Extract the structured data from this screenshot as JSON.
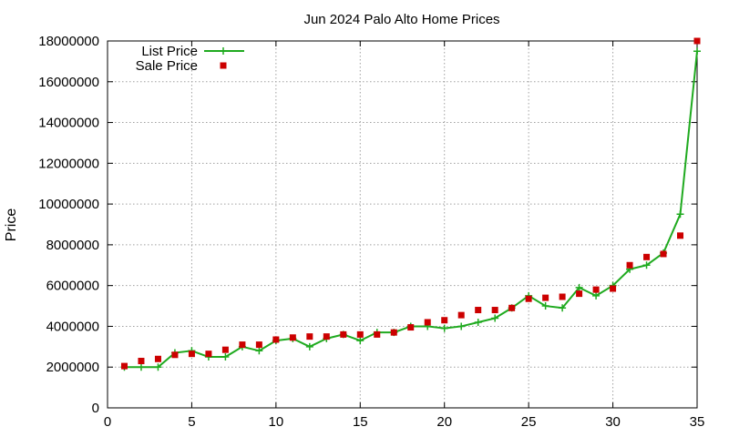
{
  "chart_data": {
    "type": "line",
    "title": "Jun 2024 Palo Alto Home Prices",
    "xlabel": "",
    "ylabel": "Price",
    "xlim": [
      0,
      35
    ],
    "ylim": [
      0,
      18000000
    ],
    "x_ticks": [
      0,
      5,
      10,
      15,
      20,
      25,
      30,
      35
    ],
    "y_ticks": [
      0,
      2000000,
      4000000,
      6000000,
      8000000,
      10000000,
      12000000,
      14000000,
      16000000,
      18000000
    ],
    "grid": true,
    "legend_position": "top-left",
    "x": [
      1,
      2,
      3,
      4,
      5,
      6,
      7,
      8,
      9,
      10,
      11,
      12,
      13,
      14,
      15,
      16,
      17,
      18,
      19,
      20,
      21,
      22,
      23,
      24,
      25,
      26,
      27,
      28,
      29,
      30,
      31,
      32,
      33,
      34,
      35
    ],
    "series": [
      {
        "name": "List Price",
        "style": "line-plus",
        "color": "#1faa1f",
        "values": [
          2000000,
          2000000,
          2000000,
          2700000,
          2800000,
          2500000,
          2500000,
          3000000,
          2800000,
          3300000,
          3400000,
          3000000,
          3400000,
          3600000,
          3300000,
          3700000,
          3700000,
          4000000,
          4000000,
          3900000,
          4000000,
          4200000,
          4400000,
          4900000,
          5500000,
          5000000,
          4900000,
          5900000,
          5500000,
          6000000,
          6800000,
          7000000,
          7600000,
          9500000,
          17500000
        ]
      },
      {
        "name": "Sale Price",
        "style": "square-points",
        "color": "#cc0000",
        "values": [
          2050000,
          2300000,
          2400000,
          2600000,
          2650000,
          2650000,
          2850000,
          3100000,
          3100000,
          3350000,
          3450000,
          3500000,
          3500000,
          3600000,
          3600000,
          3600000,
          3700000,
          3950000,
          4200000,
          4300000,
          4550000,
          4800000,
          4800000,
          4900000,
          5350000,
          5400000,
          5450000,
          5600000,
          5800000,
          5850000,
          7000000,
          7400000,
          7550000,
          8450000,
          18000000
        ]
      }
    ]
  }
}
